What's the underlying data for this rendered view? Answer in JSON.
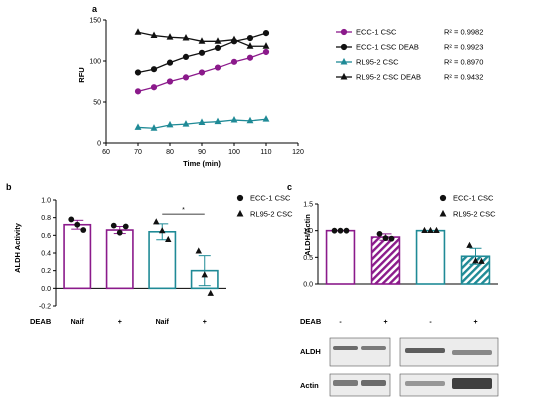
{
  "panels": {
    "a": "a",
    "b": "b",
    "c": "c"
  },
  "colors": {
    "ecc1": "#8B1A8B",
    "ecc1_deab": "#111111",
    "rl95": "#1F8A96",
    "rl95_deab": "#111111"
  },
  "chart_data": [
    {
      "type": "line",
      "xlabel": "Time (min)",
      "ylabel": "RFU",
      "xlim": [
        60,
        120
      ],
      "ylim": [
        0,
        150
      ],
      "xticks": [
        "60",
        "70",
        "80",
        "90",
        "100",
        "110",
        "120"
      ],
      "yticks": [
        "0",
        "50",
        "100",
        "150"
      ],
      "x": [
        70,
        75,
        80,
        85,
        90,
        95,
        100,
        105,
        110
      ],
      "series": [
        {
          "name": "ECC-1 CSC",
          "r2": "R² = 0.9982",
          "marker": "circle",
          "color": "#8B1A8B",
          "values": [
            63,
            68,
            75,
            80,
            86,
            92,
            99,
            104,
            111
          ]
        },
        {
          "name": "ECC-1 CSC DEAB",
          "r2": "R² = 0.9923",
          "marker": "circle",
          "color": "#111111",
          "values": [
            86,
            90,
            98,
            105,
            110,
            116,
            124,
            128,
            134
          ]
        },
        {
          "name": "RL95-2 CSC",
          "r2": "R² = 0.8970",
          "marker": "triangle",
          "color": "#1F8A96",
          "values": [
            19,
            18,
            22,
            23,
            25,
            26,
            28,
            27,
            29
          ]
        },
        {
          "name": "RL95-2 CSC DEAB",
          "r2": "R² = 0.9432",
          "marker": "triangle",
          "color": "#111111",
          "values": [
            135,
            131,
            129,
            128,
            124,
            124,
            126,
            118,
            118
          ]
        }
      ]
    },
    {
      "type": "bar",
      "ylabel": "ALDH Activity",
      "ylim": [
        -0.2,
        1.0
      ],
      "yticks": [
        "-0.2",
        "0.0",
        "0.2",
        "0.4",
        "0.6",
        "0.8",
        "1.0"
      ],
      "xrow_label": "DEAB",
      "categories": [
        "Naif",
        "+",
        "Naif",
        "+"
      ],
      "values": [
        0.72,
        0.66,
        0.64,
        0.2
      ],
      "errors": [
        0.05,
        0.04,
        0.09,
        0.17
      ],
      "points": [
        [
          0.78,
          0.72,
          0.66
        ],
        [
          0.71,
          0.63,
          0.7
        ],
        [
          0.75,
          0.65,
          0.55
        ],
        [
          0.42,
          0.15,
          -0.06
        ]
      ],
      "fills": [
        "none",
        "none",
        "none",
        "none"
      ],
      "group_colors": [
        "#8B1A8B",
        "#8B1A8B",
        "#1F8A96",
        "#1F8A96"
      ],
      "markers": [
        "circle",
        "circle",
        "triangle",
        "triangle"
      ],
      "significance": "*",
      "legend": [
        "ECC-1 CSC",
        "RL95-2 CSC"
      ]
    },
    {
      "type": "bar",
      "ylabel": "ALDH/Actin",
      "ylim": [
        0,
        1.5
      ],
      "yticks": [
        "0.0",
        "0.5",
        "1.0",
        "1.5"
      ],
      "xrow_label": "DEAB",
      "categories": [
        "-",
        "+",
        "-",
        "+"
      ],
      "values": [
        1.0,
        0.88,
        1.0,
        0.52
      ],
      "errors": [
        0.0,
        0.06,
        0.0,
        0.15
      ],
      "points": [
        [
          1.0,
          1.0,
          1.0
        ],
        [
          0.94,
          0.86,
          0.85
        ],
        [
          1.0,
          1.0,
          1.0
        ],
        [
          0.72,
          0.43,
          0.42
        ]
      ],
      "hatched": [
        false,
        true,
        false,
        true
      ],
      "group_colors": [
        "#8B1A8B",
        "#8B1A8B",
        "#1F8A96",
        "#1F8A96"
      ],
      "markers": [
        "circle",
        "circle",
        "triangle",
        "triangle"
      ],
      "legend": [
        "ECC-1 CSC",
        "RL95-2 CSC"
      ],
      "blot_labels": [
        "ALDH",
        "Actin"
      ]
    }
  ]
}
